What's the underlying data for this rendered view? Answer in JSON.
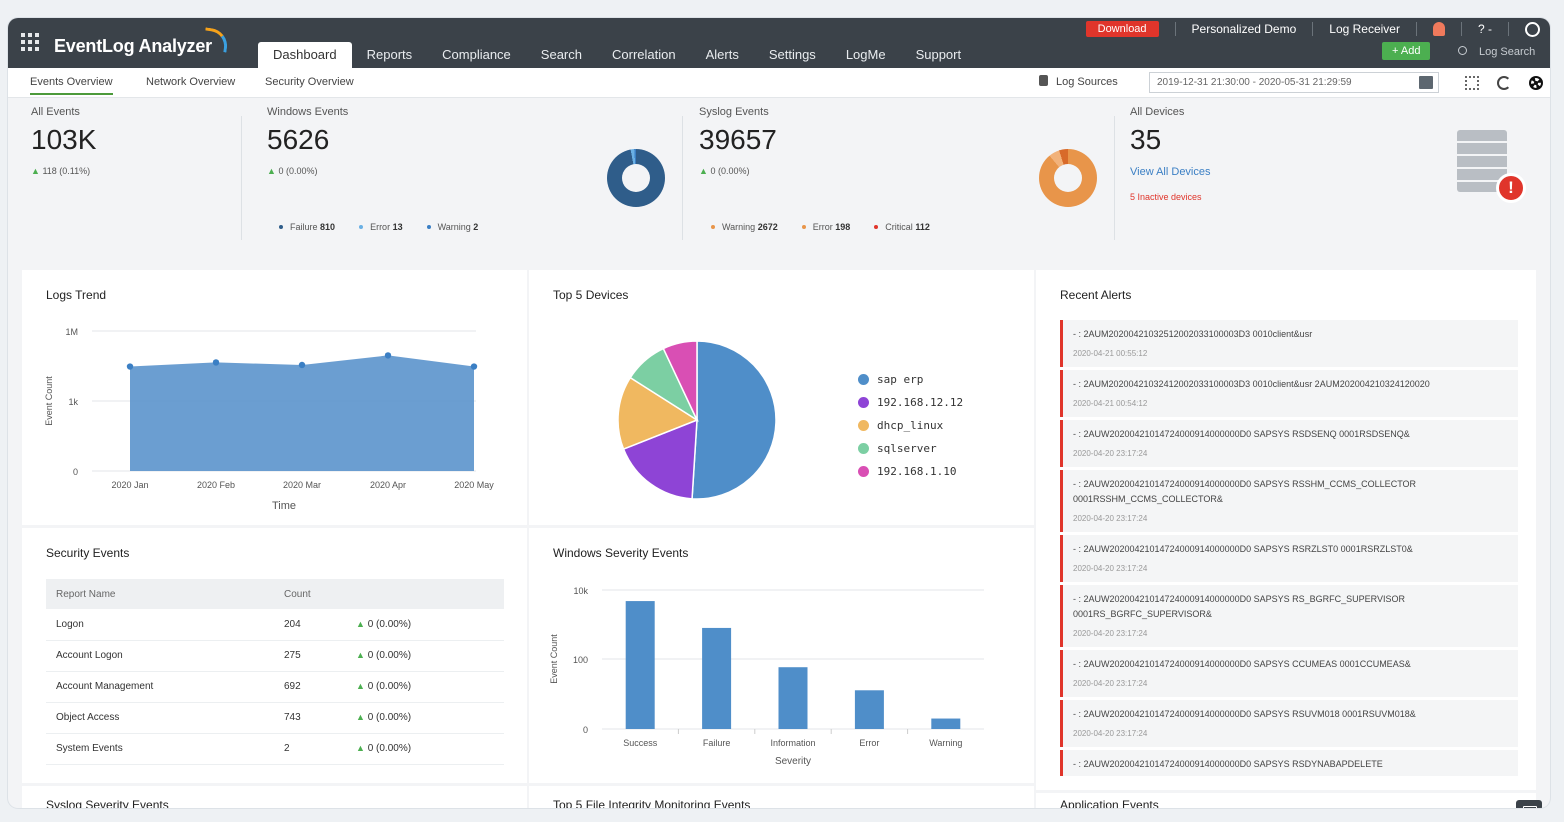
{
  "app": {
    "name": "EventLog Analyzer"
  },
  "nav": [
    "Dashboard",
    "Reports",
    "Compliance",
    "Search",
    "Correlation",
    "Alerts",
    "Settings",
    "LogMe",
    "Support"
  ],
  "top": {
    "download": "Download",
    "demo": "Personalized Demo",
    "receiver": "Log Receiver",
    "help": "? -",
    "add": "+ Add",
    "search_placeholder": "Log Search"
  },
  "subtabs": [
    "Events Overview",
    "Network Overview",
    "Security Overview"
  ],
  "subbar": {
    "log_sources": "Log Sources",
    "date_range": "2019-12-31 21:30:00 - 2020-05-31 21:29:59"
  },
  "summary": {
    "all_events": {
      "label": "All Events",
      "value": "103K",
      "delta": "118 (0.11%)"
    },
    "windows": {
      "label": "Windows Events",
      "value": "5626",
      "delta": "0 (0.00%)",
      "legend": [
        {
          "label": "Failure",
          "value": "810",
          "color": "#2f5d8a"
        },
        {
          "label": "Error",
          "value": "13",
          "color": "#6ab0e4"
        },
        {
          "label": "Warning",
          "value": "2",
          "color": "#3b7fc4"
        }
      ]
    },
    "syslog": {
      "label": "Syslog Events",
      "value": "39657",
      "delta": "0 (0.00%)",
      "legend": [
        {
          "label": "Warning",
          "value": "2672",
          "color": "#e8954a"
        },
        {
          "label": "Error",
          "value": "198",
          "color": "#e8954a"
        },
        {
          "label": "Critical",
          "value": "112",
          "color": "#e0352b"
        }
      ]
    },
    "devices": {
      "label": "All Devices",
      "value": "35",
      "view_all": "View All Devices",
      "inactive": "5 Inactive devices"
    }
  },
  "panels": {
    "logs_trend": "Logs Trend",
    "top5_devices": "Top 5 Devices",
    "recent_alerts": "Recent Alerts",
    "security_events": "Security Events",
    "windows_severity": "Windows Severity Events",
    "syslog_severity": "Syslog Severity Events",
    "fim_events": "Top 5 File Integrity Monitoring Events",
    "app_events": "Application Events"
  },
  "chart_data": [
    {
      "type": "area",
      "xlabel": "Time",
      "ylabel": "Event Count",
      "categories": [
        "2020 Jan",
        "2020 Feb",
        "2020 Mar",
        "2020 Apr",
        "2020 May"
      ],
      "y_ticks": [
        "0",
        "1k",
        "1M"
      ],
      "y_scale": "log",
      "values": [
        30000,
        45000,
        35000,
        90000,
        30000
      ],
      "color": "#5b93cc"
    },
    {
      "type": "pie",
      "series": [
        {
          "name": "sap erp",
          "value": 51,
          "color": "#4f8ec9"
        },
        {
          "name": "192.168.12.12",
          "value": 18,
          "color": "#8e44d6"
        },
        {
          "name": "dhcp_linux",
          "value": 15,
          "color": "#f0b860"
        },
        {
          "name": "sqlserver",
          "value": 9,
          "color": "#7ccfa3"
        },
        {
          "name": "192.168.1.10",
          "value": 7,
          "color": "#d94fb4"
        }
      ]
    },
    {
      "type": "bar",
      "xlabel": "Severity",
      "ylabel": "Event Count",
      "categories": [
        "Success",
        "Failure",
        "Information",
        "Error",
        "Warning"
      ],
      "y_ticks": [
        "0",
        "100",
        "10k"
      ],
      "y_scale": "log",
      "values": [
        4800,
        810,
        60,
        13,
        2
      ],
      "color": "#4f8ec9"
    }
  ],
  "security_table": {
    "headers": [
      "Report Name",
      "Count"
    ],
    "rows": [
      {
        "name": "Logon",
        "count": "204",
        "delta": "0 (0.00%)"
      },
      {
        "name": "Account Logon",
        "count": "275",
        "delta": "0 (0.00%)"
      },
      {
        "name": "Account Management",
        "count": "692",
        "delta": "0 (0.00%)"
      },
      {
        "name": "Object Access",
        "count": "743",
        "delta": "0 (0.00%)"
      },
      {
        "name": "System Events",
        "count": "2",
        "delta": "0 (0.00%)"
      }
    ]
  },
  "alerts": [
    {
      "text": "- : 2AUM20200421032512002033100003D3 0010client&usr",
      "ts": "2020-04-21 00:55:12"
    },
    {
      "text": "- : 2AUM20200421032412002033100003D3 0010client&usr 2AUM202004210324120020",
      "ts": "2020-04-21 00:54:12"
    },
    {
      "text": "- : 2AUW20200421014724000914000000D0 SAPSYS RSDSENQ 0001RSDSENQ&",
      "ts": "2020-04-20 23:17:24"
    },
    {
      "text": "- : 2AUW20200421014724000914000000D0 SAPSYS RSSHM_CCMS_COLLECTOR 0001RSSHM_CCMS_COLLECTOR&",
      "ts": "2020-04-20 23:17:24"
    },
    {
      "text": "- : 2AUW20200421014724000914000000D0 SAPSYS RSRZLST0 0001RSRZLST0&",
      "ts": "2020-04-20 23:17:24"
    },
    {
      "text": "- : 2AUW20200421014724000914000000D0 SAPSYS RS_BGRFC_SUPERVISOR 0001RS_BGRFC_SUPERVISOR&",
      "ts": "2020-04-20 23:17:24"
    },
    {
      "text": "- : 2AUW20200421014724000914000000D0 SAPSYS CCUMEAS 0001CCUMEAS&",
      "ts": "2020-04-20 23:17:24"
    },
    {
      "text": "- : 2AUW20200421014724000914000000D0 SAPSYS RSUVM018 0001RSUVM018&",
      "ts": "2020-04-20 23:17:24"
    },
    {
      "text": "- : 2AUW20200421014724000914000000D0 SAPSYS RSDYNABAPDELETE",
      "ts": ""
    }
  ]
}
